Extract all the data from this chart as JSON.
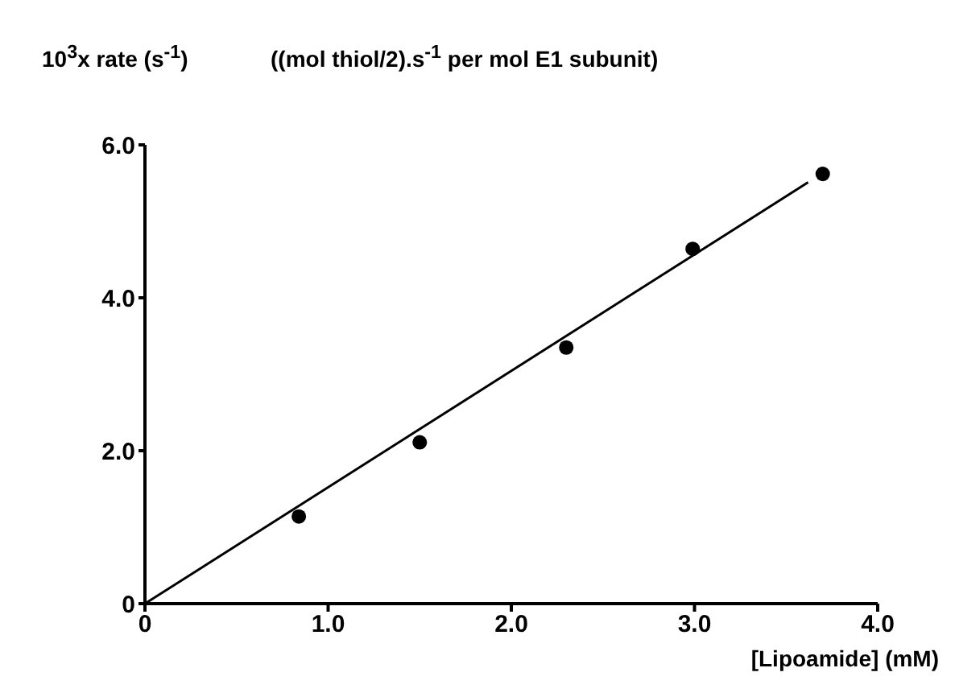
{
  "chart_data": {
    "type": "scatter",
    "ylabel": "10$^{3}$x rate (s$^{-1}$)",
    "subtitle": "((mol thiol/2).s$^{-1}$ per mol E1 subunit)",
    "xlabel": "[Lipoamide] (mM)",
    "series": [
      {
        "color": "#000000",
        "marker": "circle",
        "x": [
          0.84,
          1.5,
          2.3,
          2.99,
          3.7
        ],
        "values": [
          1.14,
          2.11,
          3.35,
          4.64,
          5.62
        ]
      },
      {
        "type": "line",
        "color": "#000000",
        "marker": "none",
        "line_style": "solid",
        "x": [
          0,
          3.62
        ],
        "values": [
          0,
          5.51
        ]
      }
    ],
    "xlim": [
      0,
      4
    ],
    "xticks": [
      0,
      {
        "value": 1,
        "label": "1.0"
      },
      {
        "value": 2,
        "label": "2.0"
      },
      {
        "value": 3,
        "label": "3.0"
      },
      {
        "value": 4,
        "label": "4.0"
      }
    ],
    "ylim": [
      0,
      6
    ],
    "yticks": [
      0,
      {
        "value": 2,
        "label": "2.0"
      },
      {
        "value": 4,
        "label": "4.0"
      },
      {
        "value": 6,
        "label": "6.0"
      }
    ],
    "grid": false
  }
}
